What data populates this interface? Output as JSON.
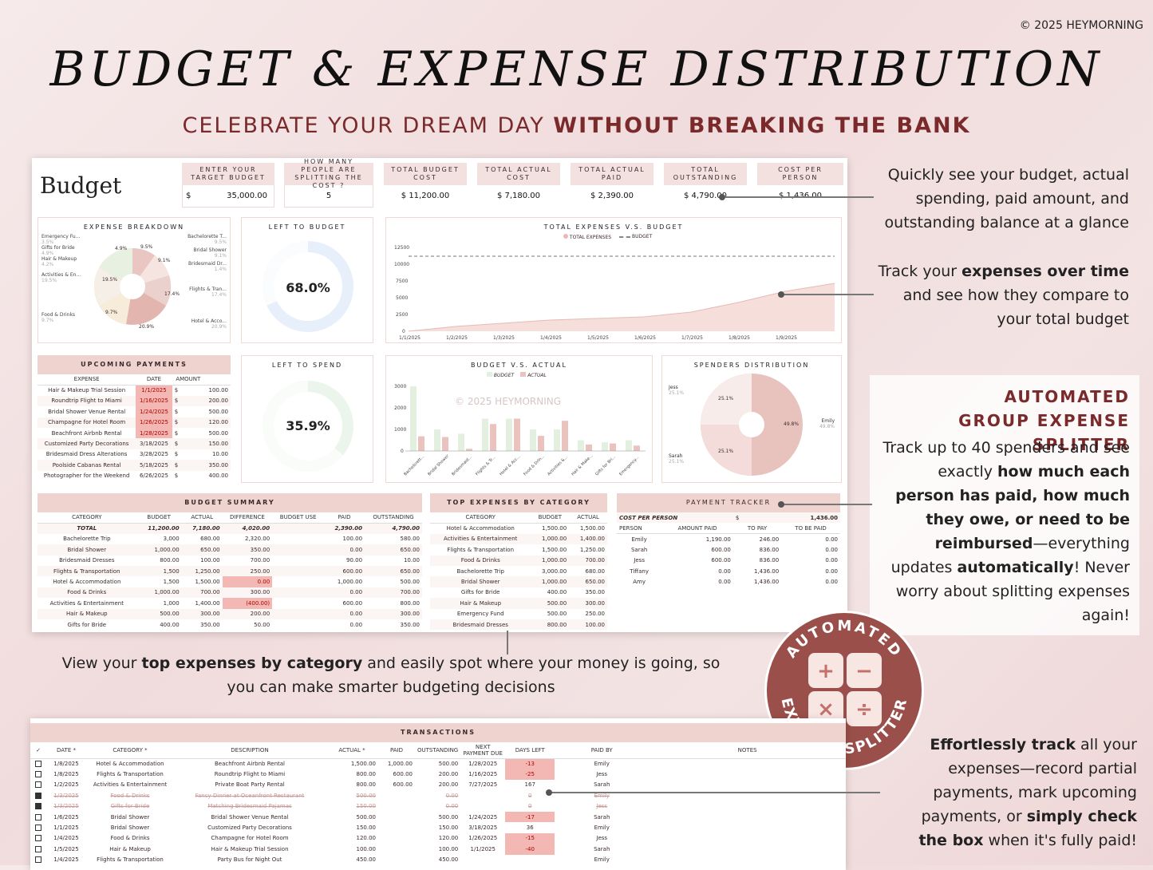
{
  "copyright": "© 2025 HEYMORNING",
  "title": "BUDGET & EXPENSE DISTRIBUTION",
  "subtitle_plain": "CELEBRATE YOUR DREAM DAY ",
  "subtitle_bold": "WITHOUT BREAKING THE BANK",
  "sheet_title": "Budget",
  "kpis": {
    "target_label": "ENTER YOUR TARGET BUDGET",
    "target_cur": "$",
    "target_value": "35,000.00",
    "people_label": "HOW MANY PEOPLE ARE SPLITTING THE COST ?",
    "people_value": "5",
    "budget_label": "TOTAL BUDGET COST",
    "budget_value": "$ 11,200.00",
    "actual_label": "TOTAL ACTUAL COST",
    "actual_value": "$ 7,180.00",
    "paid_label": "TOTAL ACTUAL PAID",
    "paid_value": "$ 2,390.00",
    "outstanding_label": "TOTAL OUTSTANDING",
    "outstanding_value": "$ 4,790.00",
    "cpp_label": "COST PER PERSON",
    "cpp_value": "$ 1,436.00"
  },
  "expense_breakdown": {
    "title": "EXPENSE BREAKDOWN",
    "labels": [
      "Emergency Fu...",
      "Gifts for Bride",
      "Hair & Makeup",
      "Activities & En...",
      "Food & Drinks",
      "Bachelorette T...",
      "Bridal Shower",
      "Bridesmaid Dr...",
      "Flights & Tran...",
      "Hotel & Acco..."
    ],
    "pcts": [
      "3.5%",
      "4.9%",
      "4.2%",
      "19.5%",
      "9.7%",
      "9.5%",
      "9.1%",
      "1.4%",
      "17.4%",
      "20.9%"
    ],
    "slice_labels": [
      "9.5%",
      "9.1%",
      "4.9%",
      "19.5%",
      "17.4%",
      "9.7%",
      "20.9%"
    ]
  },
  "left_to_budget": {
    "title": "LEFT TO BUDGET",
    "value": "68.0%",
    "fraction": 0.68
  },
  "left_to_spend": {
    "title": "LEFT TO SPEND",
    "value": "35.9%",
    "fraction": 0.359
  },
  "expenses_vs_budget": {
    "title": "TOTAL EXPENSES V.S. BUDGET",
    "legend_a": "TOTAL EXPENSES",
    "legend_b": "BUDGET"
  },
  "budget_vs_actual": {
    "title": "BUDGET V.S. ACTUAL",
    "legend_a": "BUDGET",
    "legend_b": "ACTUAL",
    "watermark": "© 2025 HEYMORNING"
  },
  "spenders": {
    "title": "SPENDERS DISTRIBUTION",
    "jess": "Jess",
    "jess_p": "25.1%",
    "sarah": "Sarah",
    "sarah_p": "25.1%",
    "emily": "Emily",
    "emily_p": "49.8%",
    "inner_a": "25.1%",
    "inner_b": "25.1%",
    "inner_c": "49.8%"
  },
  "upcoming": {
    "title": "UPCOMING PAYMENTS",
    "cols": [
      "EXPENSE",
      "DATE",
      "AMOUNT"
    ],
    "rows": [
      [
        "Hair & Makeup Trial Session",
        "1/1/2025",
        "100.00",
        true
      ],
      [
        "Roundtrip Flight to Miami",
        "1/16/2025",
        "200.00",
        true
      ],
      [
        "Bridal Shower Venue Rental",
        "1/24/2025",
        "500.00",
        true
      ],
      [
        "Champagne for Hotel Room",
        "1/26/2025",
        "120.00",
        true
      ],
      [
        "Beachfront Airbnb Rental",
        "1/28/2025",
        "500.00",
        true
      ],
      [
        "Customized Party Decorations",
        "3/18/2025",
        "150.00",
        false
      ],
      [
        "Bridesmaid Dress Alterations",
        "3/28/2025",
        "10.00",
        false
      ],
      [
        "Poolside Cabanas Rental",
        "5/18/2025",
        "350.00",
        false
      ],
      [
        "Photographer for the Weekend",
        "6/26/2025",
        "400.00",
        false
      ]
    ]
  },
  "budget_summary": {
    "title": "BUDGET SUMMARY",
    "cols": [
      "CATEGORY",
      "BUDGET",
      "ACTUAL",
      "DIFFERENCE",
      "BUDGET USE",
      "PAID",
      "OUTSTANDING"
    ],
    "total": [
      "TOTAL",
      "11,200.00",
      "7,180.00",
      "4,020.00",
      "",
      "2,390.00",
      "4,790.00"
    ],
    "rows": [
      [
        "Bachelorette Trip",
        "3,000",
        "680.00",
        "2,320.00",
        "100.00",
        "580.00"
      ],
      [
        "Bridal Shower",
        "1,000.00",
        "650.00",
        "350.00",
        "0.00",
        "650.00"
      ],
      [
        "Bridesmaid Dresses",
        "800.00",
        "100.00",
        "700.00",
        "90.00",
        "10.00"
      ],
      [
        "Flights & Transportation",
        "1,500",
        "1,250.00",
        "250.00",
        "600.00",
        "650.00"
      ],
      [
        "Hotel & Accommodation",
        "1,500",
        "1,500.00",
        "0.00",
        "1,000.00",
        "500.00"
      ],
      [
        "Food & Drinks",
        "1,000.00",
        "700.00",
        "300.00",
        "0.00",
        "700.00"
      ],
      [
        "Activities & Entertainment",
        "1,000",
        "1,400.00",
        "(400.00)",
        "600.00",
        "800.00"
      ],
      [
        "Hair & Makeup",
        "500.00",
        "300.00",
        "200.00",
        "0.00",
        "300.00"
      ],
      [
        "Gifts for Bride",
        "400.00",
        "350.00",
        "50.00",
        "0.00",
        "350.00"
      ]
    ]
  },
  "top_expenses": {
    "title": "TOP EXPENSES BY CATEGORY",
    "cols": [
      "CATEGORY",
      "BUDGET",
      "ACTUAL"
    ],
    "rows": [
      [
        "Hotel & Accommodation",
        "1,500.00",
        "1,500.00"
      ],
      [
        "Activities & Entertainment",
        "1,000.00",
        "1,400.00"
      ],
      [
        "Flights & Transportation",
        "1,500.00",
        "1,250.00"
      ],
      [
        "Food & Drinks",
        "1,000.00",
        "700.00"
      ],
      [
        "Bachelorette Trip",
        "3,000.00",
        "680.00"
      ],
      [
        "Bridal Shower",
        "1,000.00",
        "650.00"
      ],
      [
        "Gifts for Bride",
        "400.00",
        "350.00"
      ],
      [
        "Hair & Makeup",
        "500.00",
        "300.00"
      ],
      [
        "Emergency Fund",
        "500.00",
        "250.00"
      ],
      [
        "Bridesmaid Dresses",
        "800.00",
        "100.00"
      ]
    ]
  },
  "payment_tracker": {
    "title": "PAYMENT TRACKER",
    "cpp_label": "COST PER PERSON",
    "cpp": "1,436.00",
    "cols": [
      "PERSON",
      "AMOUNT PAID",
      "TO PAY",
      "TO BE PAID"
    ],
    "rows": [
      [
        "Emily",
        "1,190.00",
        "246.00",
        "0.00"
      ],
      [
        "Sarah",
        "600.00",
        "836.00",
        "0.00"
      ],
      [
        "Jess",
        "600.00",
        "836.00",
        "0.00"
      ],
      [
        "Tiffany",
        "0.00",
        "1,436.00",
        "0.00"
      ],
      [
        "Amy",
        "0.00",
        "1,436.00",
        "0.00"
      ]
    ]
  },
  "callouts": {
    "c1": "Quickly see your budget, actual spending, paid amount, and outstanding balance at a glance",
    "c2a": "Track your ",
    "c2b": "expenses over time",
    "c2c": " and see how they compare to your total budget",
    "c3a": "View your ",
    "c3b": "top expenses by category",
    "c3c": " and easily spot where your money is going, so you can make smarter budgeting decisions",
    "s_title1": "AUTOMATED",
    "s_title2": "GROUP EXPENSE SPLITTER",
    "s1": "Track up to 40 spenders and see exactly ",
    "s2": "how much each person has paid, how much they owe, or need to be reimbursed",
    "s3": "—everything updates ",
    "s4": "automatically",
    "s5": "! Never worry about splitting expenses again!",
    "c4a": "Effortlessly track",
    "c4b": " all your expenses—record partial payments, mark upcoming payments, or ",
    "c4c": "simply check the box",
    "c4d": " when it's fully paid!"
  },
  "badge": {
    "top": "AUTOMATED",
    "bottom": "EXPENSE SPLITTER"
  },
  "transactions": {
    "title": "TRANSACTIONS",
    "cols": [
      "DATE *",
      "CATEGORY *",
      "DESCRIPTION",
      "ACTUAL *",
      "PAID",
      "OUTSTANDING",
      "NEXT PAYMENT DUE",
      "DAYS LEFT",
      "PAID BY",
      "NOTES"
    ],
    "rows": [
      [
        false,
        "1/8/2025",
        "Hotel & Accommodation",
        "Beachfront Airbnb Rental",
        "1,500.00",
        "1,000.00",
        "500.00",
        "1/28/2025",
        "-13",
        "Emily"
      ],
      [
        false,
        "1/8/2025",
        "Flights & Transportation",
        "Roundtrip Flight to Miami",
        "800.00",
        "600.00",
        "200.00",
        "1/16/2025",
        "-25",
        "Jess"
      ],
      [
        false,
        "1/2/2025",
        "Activities & Entertainment",
        "Private Boat Party Rental",
        "800.00",
        "600.00",
        "200.00",
        "7/27/2025",
        "167",
        "Sarah"
      ],
      [
        true,
        "1/3/2025",
        "Food & Drinks",
        "Fancy Dinner at Oceanfront Restaurant",
        "500.00",
        "",
        "0.00",
        "",
        "0",
        "Emily"
      ],
      [
        true,
        "1/3/2025",
        "Gifts for Bride",
        "Matching Bridesmaid Pajamas",
        "150.00",
        "",
        "0.00",
        "",
        "0",
        "Jess"
      ],
      [
        false,
        "1/6/2025",
        "Bridal Shower",
        "Bridal Shower Venue Rental",
        "500.00",
        "",
        "500.00",
        "1/24/2025",
        "-17",
        "Sarah"
      ],
      [
        false,
        "1/1/2025",
        "Bridal Shower",
        "Customized Party Decorations",
        "150.00",
        "",
        "150.00",
        "3/18/2025",
        "36",
        "Emily"
      ],
      [
        false,
        "1/4/2025",
        "Food & Drinks",
        "Champagne for Hotel Room",
        "120.00",
        "",
        "120.00",
        "1/26/2025",
        "-15",
        "Jess"
      ],
      [
        false,
        "1/5/2025",
        "Hair & Makeup",
        "Hair & Makeup Trial Session",
        "100.00",
        "",
        "100.00",
        "1/1/2025",
        "-40",
        "Sarah"
      ],
      [
        false,
        "1/4/2025",
        "Flights & Transportation",
        "Party Bus for Night Out",
        "450.00",
        "",
        "450.00",
        "",
        "",
        "Emily"
      ]
    ]
  }
}
